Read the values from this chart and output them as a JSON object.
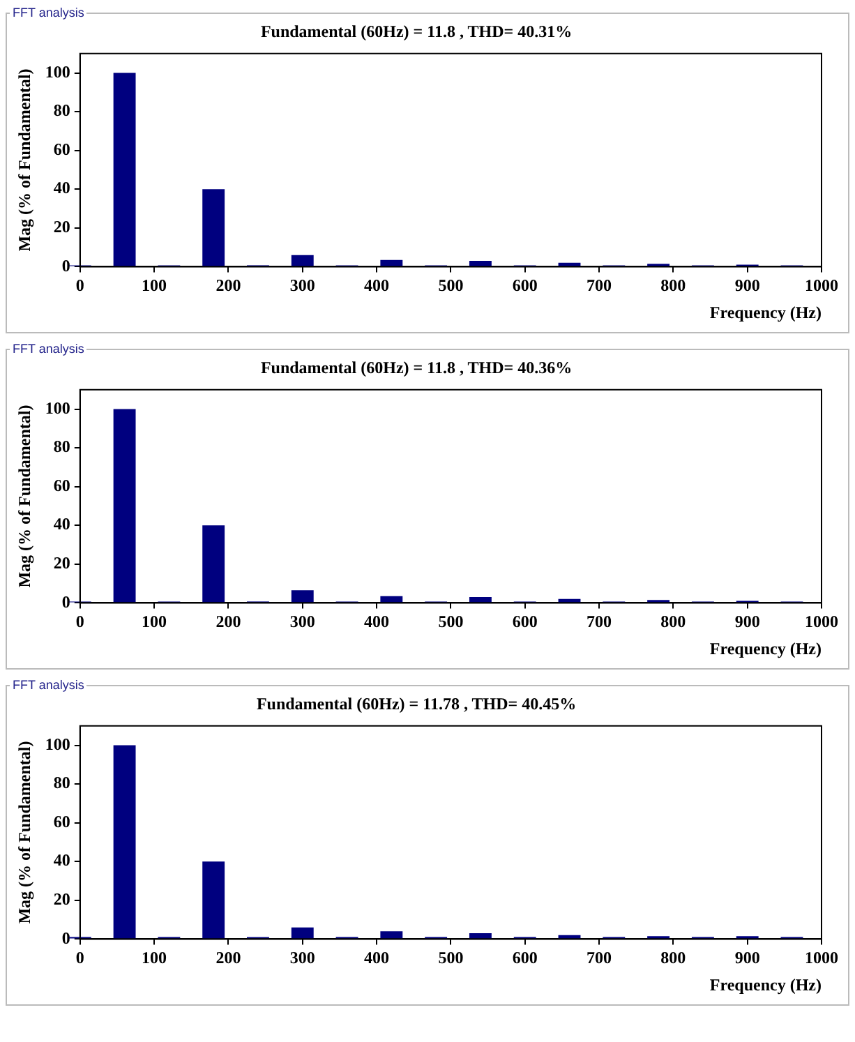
{
  "chart_data": [
    {
      "type": "bar",
      "title": "Fundamental (60Hz) = 11.8 , THD= 40.31%",
      "xlabel": "Frequency (Hz)",
      "ylabel": "Mag (% of Fundamental)",
      "annotations": [
        "FFT analysis"
      ],
      "x": [
        0,
        60,
        120,
        180,
        240,
        300,
        360,
        420,
        480,
        540,
        600,
        660,
        720,
        780,
        840,
        900,
        960
      ],
      "values": [
        0.3,
        100,
        0.3,
        40,
        0.3,
        6,
        0.3,
        3.5,
        0.3,
        3,
        0.3,
        2,
        0.3,
        1.5,
        0.3,
        1,
        0.3
      ],
      "color": "#00007f",
      "xlim": [
        0,
        1000
      ],
      "xticks": [
        0,
        100,
        200,
        300,
        400,
        500,
        600,
        700,
        800,
        900,
        1000
      ],
      "ylim": [
        0,
        110
      ],
      "yticks": [
        0,
        20,
        40,
        60,
        80,
        100
      ],
      "grid": false
    },
    {
      "type": "bar",
      "title": "Fundamental (60Hz) = 11.8 , THD= 40.36%",
      "xlabel": "Frequency (Hz)",
      "ylabel": "Mag (% of Fundamental)",
      "annotations": [
        "FFT analysis"
      ],
      "x": [
        0,
        60,
        120,
        180,
        240,
        300,
        360,
        420,
        480,
        540,
        600,
        660,
        720,
        780,
        840,
        900,
        960
      ],
      "values": [
        0.3,
        100,
        0.3,
        40,
        0.3,
        6.5,
        0.3,
        3.5,
        0.3,
        3,
        0.3,
        2,
        0.3,
        1.5,
        0.3,
        1,
        0.3
      ],
      "color": "#00007f",
      "xlim": [
        0,
        1000
      ],
      "xticks": [
        0,
        100,
        200,
        300,
        400,
        500,
        600,
        700,
        800,
        900,
        1000
      ],
      "ylim": [
        0,
        110
      ],
      "yticks": [
        0,
        20,
        40,
        60,
        80,
        100
      ],
      "grid": false
    },
    {
      "type": "bar",
      "title": "Fundamental (60Hz) = 11.78 , THD= 40.45%",
      "xlabel": "Frequency (Hz)",
      "ylabel": "Mag (% of Fundamental)",
      "annotations": [
        "FFT analysis"
      ],
      "x": [
        0,
        60,
        120,
        180,
        240,
        300,
        360,
        420,
        480,
        540,
        600,
        660,
        720,
        780,
        840,
        900,
        960
      ],
      "values": [
        1,
        100,
        1,
        40,
        1,
        6,
        1,
        4,
        1,
        3,
        1,
        2,
        1,
        1.5,
        1,
        1.5,
        1
      ],
      "color": "#00007f",
      "xlim": [
        0,
        1000
      ],
      "xticks": [
        0,
        100,
        200,
        300,
        400,
        500,
        600,
        700,
        800,
        900,
        1000
      ],
      "ylim": [
        0,
        110
      ],
      "yticks": [
        0,
        20,
        40,
        60,
        80,
        100
      ],
      "grid": false
    }
  ]
}
